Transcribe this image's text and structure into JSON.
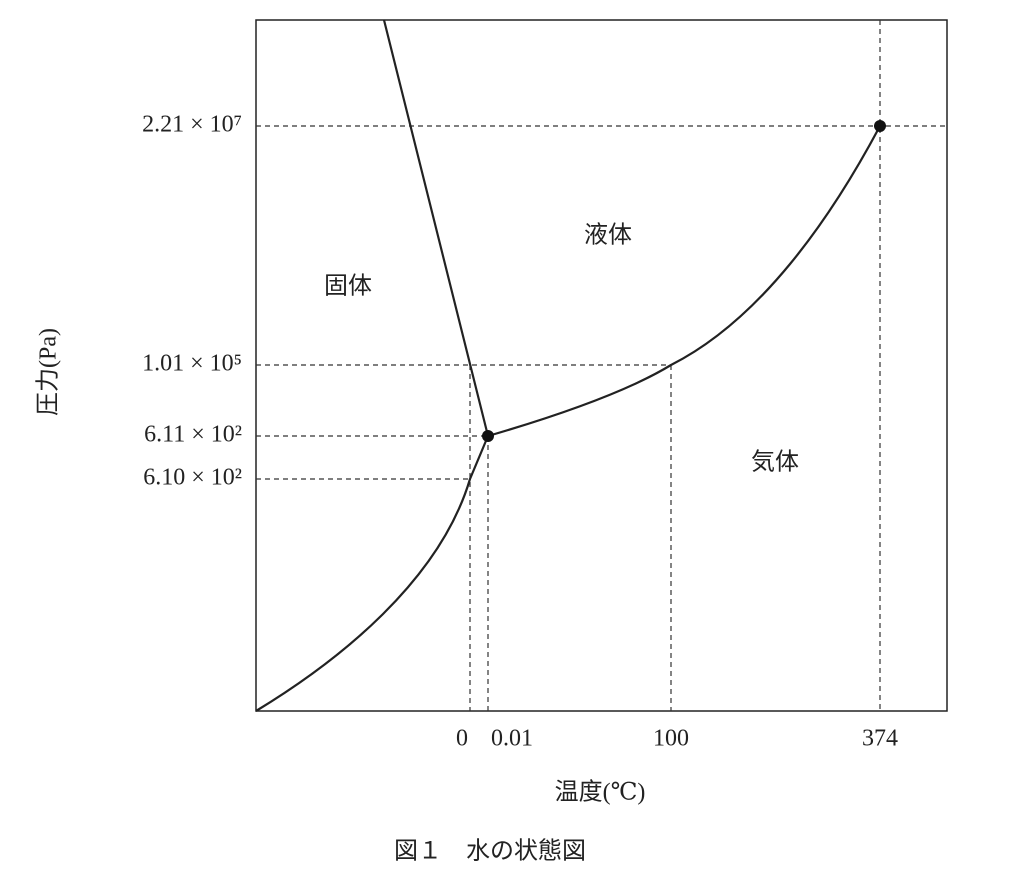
{
  "axes": {
    "y_label": "圧力(Pa)",
    "x_label": "温度(℃)",
    "y_ticks": [
      "2.21 × 10⁷",
      "1.01 × 10⁵",
      "6.11 × 10²",
      "6.10 × 10²"
    ],
    "x_ticks": [
      "0",
      "0.01",
      "100",
      "374"
    ]
  },
  "regions": {
    "solid": "固体",
    "liquid": "液体",
    "gas": "気体"
  },
  "caption": "図１　水の状態図"
}
